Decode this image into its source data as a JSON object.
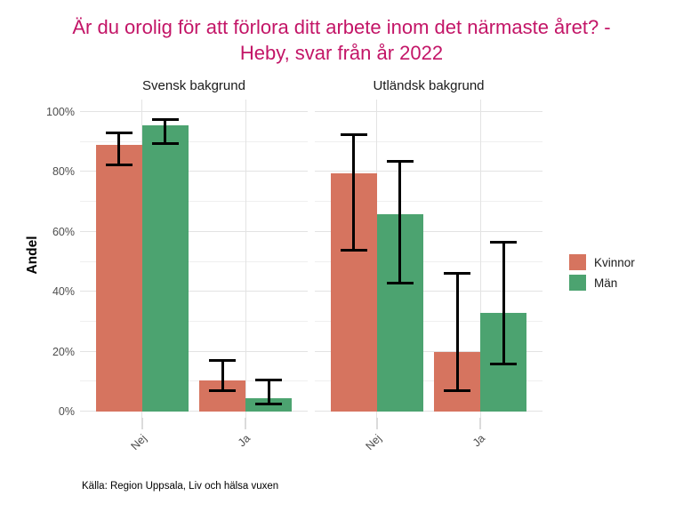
{
  "title": "Är du orolig för att förlora ditt arbete inom det närmaste året? - Heby, svar från år 2022",
  "caption": "Källa: Region Uppsala, Liv och hälsa vuxen",
  "theme": {
    "title_color": "#C31567",
    "axis_text_color": "#4D4D4D",
    "strip_text_color": "#1A1A1A",
    "grid_major_color": "#E3E3E3",
    "grid_minor_color": "#EFEFEF",
    "errorbar_color": "#000000",
    "background": "#FFFFFF"
  },
  "chart_data": {
    "type": "bar",
    "title": "Är du orolig för att förlora ditt arbete inom det närmaste året? - Heby, svar från år 2022",
    "xlabel": "",
    "ylabel": "Andel",
    "ylim": [
      0,
      100
    ],
    "y_ticks": [
      "0%",
      "20%",
      "40%",
      "60%",
      "80%",
      "100%"
    ],
    "grid": true,
    "legend": {
      "position": "right",
      "entries": [
        {
          "label": "Kvinnor",
          "color": "#D6745F"
        },
        {
          "label": "Män",
          "color": "#4CA370"
        }
      ]
    },
    "categories": [
      "Nej",
      "Ja"
    ],
    "facets": [
      {
        "label": "Svensk bakgrund",
        "categories": [
          "Nej",
          "Ja"
        ],
        "series": [
          {
            "name": "Kvinnor",
            "color": "#D6745F",
            "values": [
              89,
              10.5
            ],
            "ci_low": [
              82,
              6.5
            ],
            "ci_high": [
              93.5,
              17.5
            ]
          },
          {
            "name": "Män",
            "color": "#4CA370",
            "values": [
              95.5,
              4.5
            ],
            "ci_low": [
              89,
              2
            ],
            "ci_high": [
              98,
              11
            ]
          }
        ]
      },
      {
        "label": "Utländsk bakgrund",
        "categories": [
          "Nej",
          "Ja"
        ],
        "series": [
          {
            "name": "Kvinnor",
            "color": "#D6745F",
            "values": [
              79.5,
              20
            ],
            "ci_low": [
              53.5,
              6.5
            ],
            "ci_high": [
              93,
              46.5
            ]
          },
          {
            "name": "Män",
            "color": "#4CA370",
            "values": [
              66,
              33
            ],
            "ci_low": [
              42.5,
              15.5
            ],
            "ci_high": [
              84,
              57
            ]
          }
        ]
      }
    ]
  }
}
